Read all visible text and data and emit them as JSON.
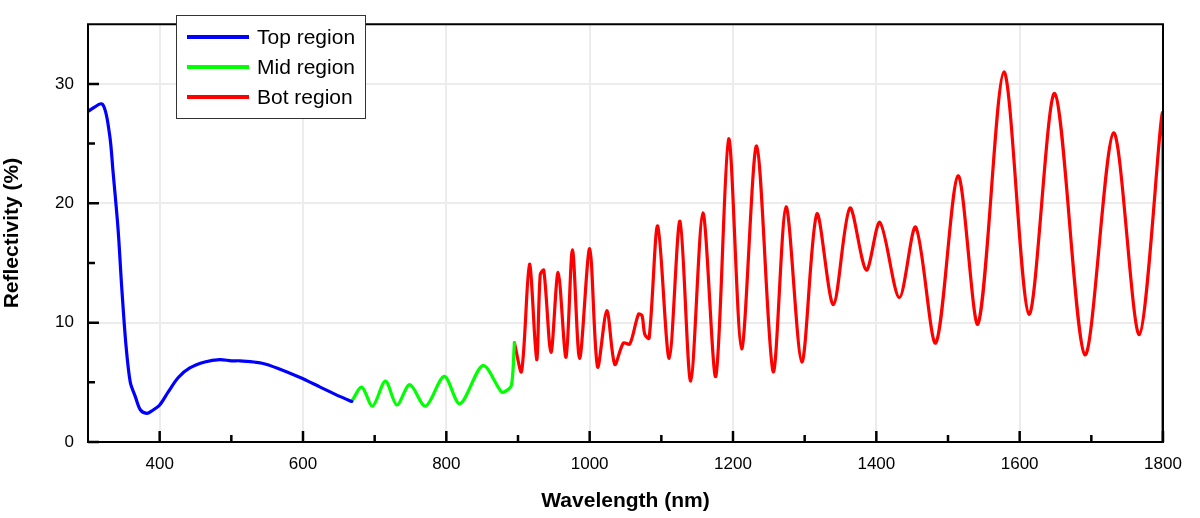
{
  "chart_data": {
    "type": "line",
    "xlabel": "Wavelength (nm)",
    "ylabel": "Reflectivity (%)",
    "xlim": [
      300,
      1800
    ],
    "ylim": [
      0,
      35
    ],
    "xticks": [
      400,
      {
        "value": 500,
        "label": null
      },
      600,
      {
        "value": 700,
        "label": null
      },
      800,
      {
        "value": 900,
        "label": null
      },
      1000,
      {
        "value": 1100,
        "label": null
      },
      1200,
      {
        "value": 1300,
        "label": null
      },
      1400,
      {
        "value": 1500,
        "label": null
      },
      1600,
      {
        "value": 1700,
        "label": null
      },
      1800
    ],
    "yticks": [
      0,
      {
        "value": 5,
        "label": null
      },
      10,
      {
        "value": 15,
        "label": null
      },
      20,
      {
        "value": 25,
        "label": null
      },
      30
    ],
    "grid": true,
    "legend": "top left",
    "marker": "none",
    "line_style": "solid",
    "series": [
      {
        "name": "Top region",
        "color": "#0000ff",
        "x": [
          300,
          320,
          330,
          335,
          342,
          347,
          353,
          359,
          366,
          373,
          382,
          389,
          400,
          412,
          426,
          442,
          463,
          484,
          500,
          512,
          543,
          568,
          596,
          624,
          652,
          668
        ],
        "values": [
          27.7,
          28.3,
          25.8,
          22.6,
          17.8,
          13,
          8.1,
          5,
          3.8,
          2.7,
          2.4,
          2.6,
          3.1,
          4.2,
          5.4,
          6.2,
          6.7,
          6.9,
          6.8,
          6.8,
          6.6,
          6.1,
          5.4,
          4.6,
          3.8,
          3.4
        ]
      },
      {
        "name": "Mid region",
        "color": "#00ff00",
        "x": [
          668,
          682,
          697,
          715,
          731,
          749,
          771,
          797,
          819,
          851,
          877,
          884,
          891,
          895
        ],
        "values": [
          3.4,
          4.6,
          3.0,
          5.1,
          3.1,
          4.8,
          3.0,
          5.5,
          3.2,
          6.4,
          4.2,
          4.3,
          4.8,
          8.3
        ]
      },
      {
        "name": "Bot region",
        "color": "#ff0000",
        "x": [
          895,
          905,
          916,
          926,
          931,
          936,
          946,
          956,
          967,
          976,
          986,
          1000,
          1011,
          1024,
          1035,
          1047,
          1056,
          1068,
          1073,
          1077,
          1083,
          1095,
          1111,
          1126,
          1141,
          1158,
          1176,
          1194,
          1212,
          1233,
          1256,
          1274,
          1296,
          1317,
          1340,
          1363,
          1386,
          1405,
          1432,
          1455,
          1483,
          1514,
          1542,
          1578,
          1613,
          1649,
          1691,
          1731,
          1767,
          1800,
          1800
        ],
        "values": [
          8.3,
          5.9,
          14.9,
          6.9,
          14.0,
          14.4,
          7.5,
          14.2,
          7.1,
          16.1,
          7.0,
          16.2,
          6.3,
          11.0,
          6.5,
          8.3,
          8.2,
          10.7,
          10.6,
          9.0,
          8.7,
          18.1,
          7.0,
          18.5,
          5.1,
          19.2,
          5.5,
          25.4,
          7.8,
          24.8,
          5.9,
          19.7,
          6.7,
          19.1,
          11.5,
          19.6,
          14.4,
          18.4,
          12.1,
          18.0,
          8.3,
          22.3,
          9.9,
          31.0,
          10.7,
          29.2,
          7.3,
          25.9,
          9.0,
          27.6,
          0
        ]
      }
    ]
  }
}
